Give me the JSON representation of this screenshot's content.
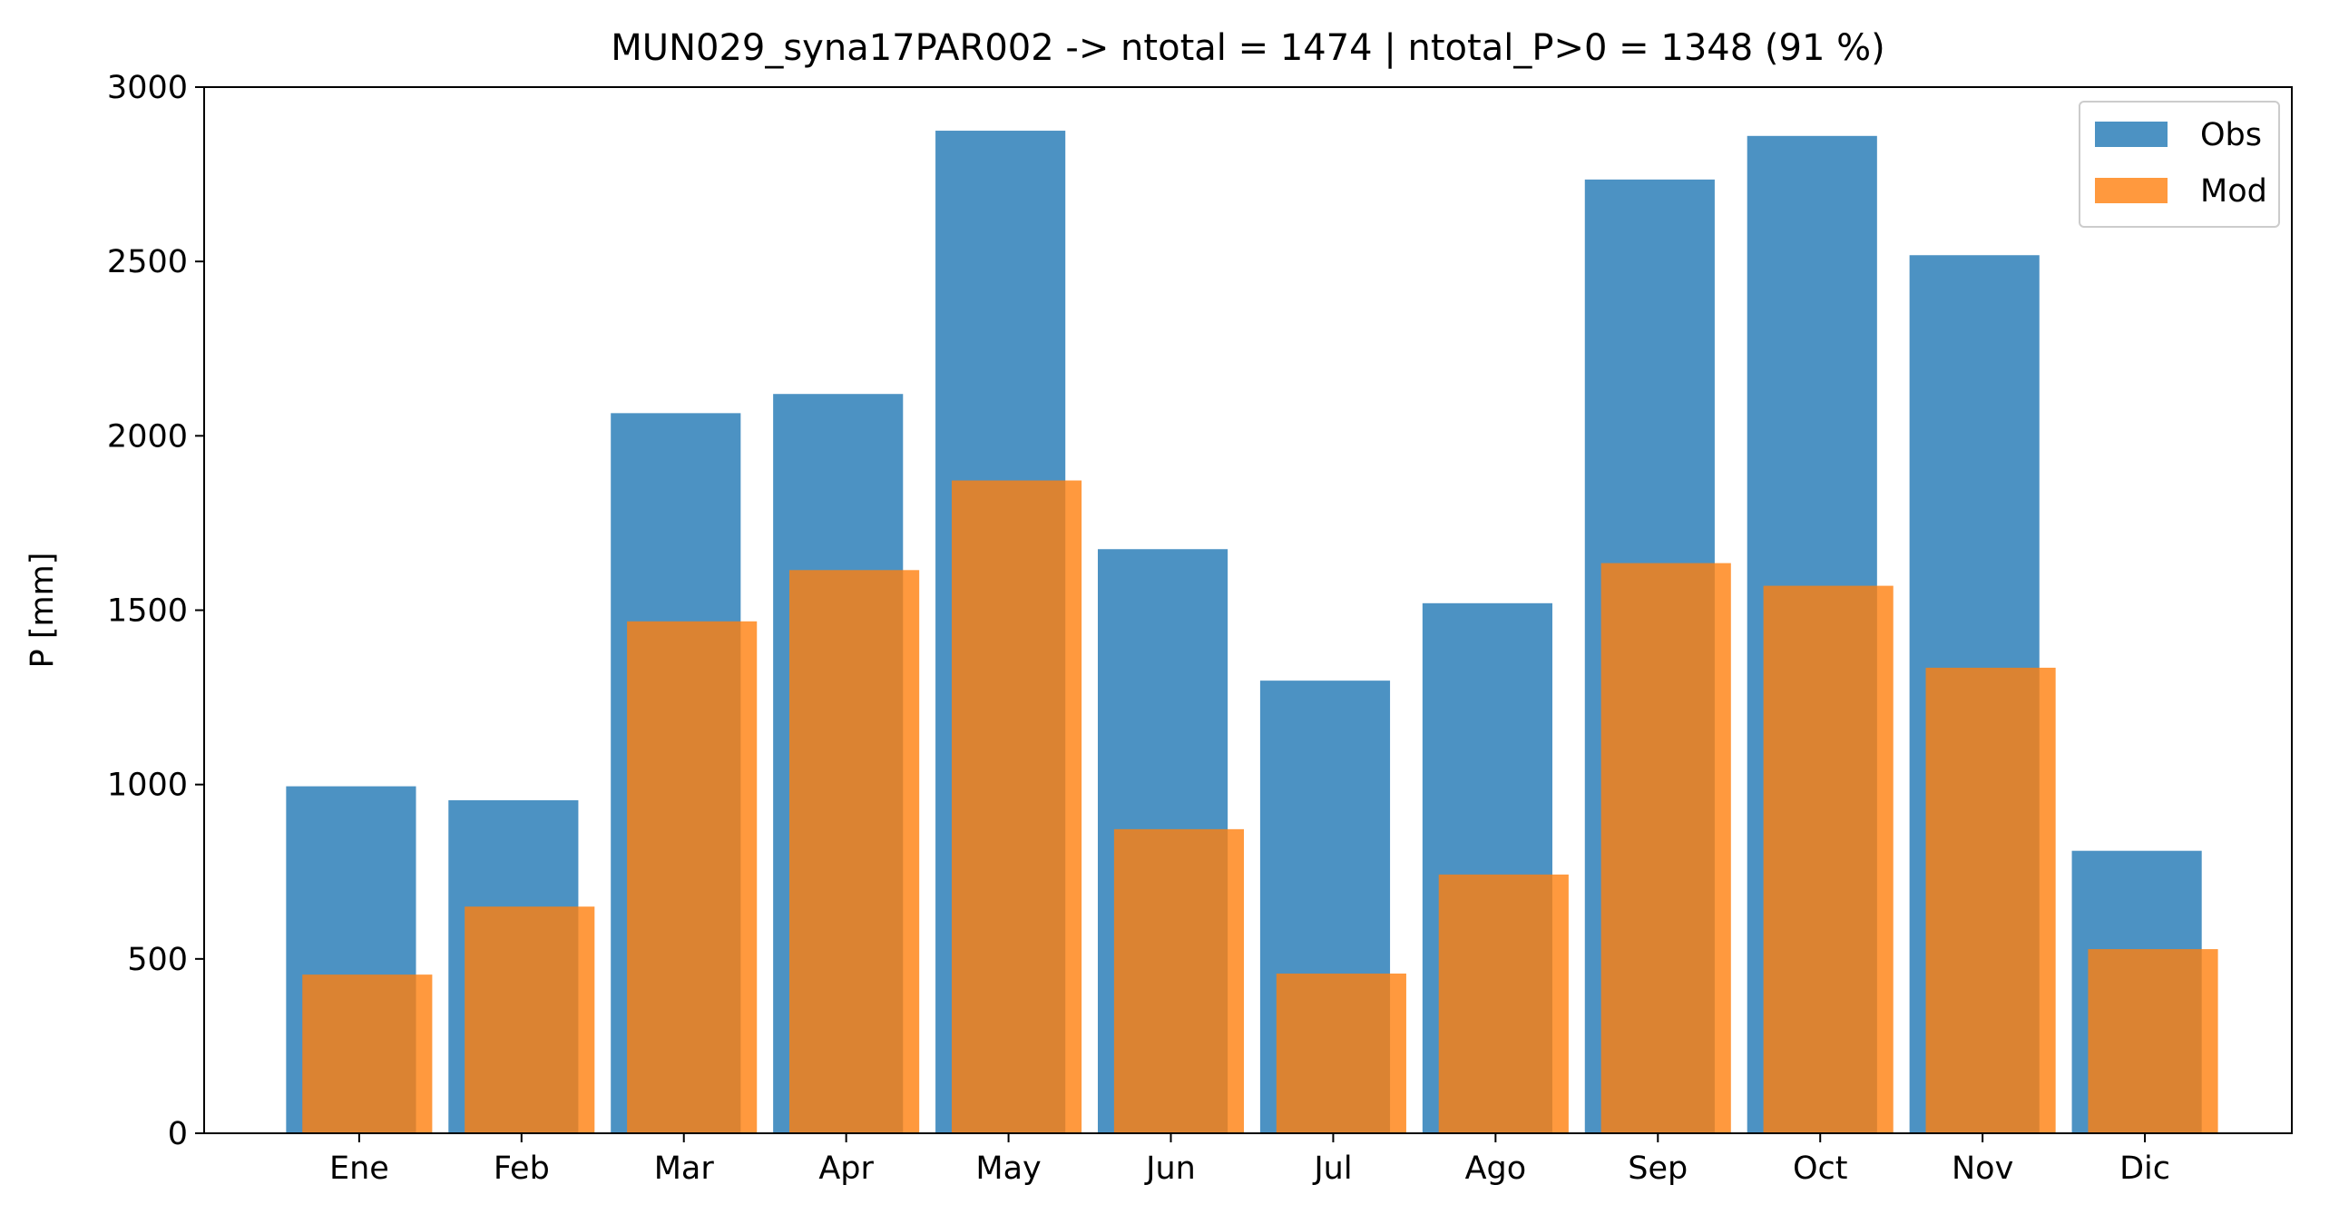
{
  "chart_data": {
    "type": "bar",
    "title": "MUN029_syna17PAR002 -> ntotal = 1474 | ntotal_P>0 = 1348 (91 %)",
    "xlabel": "",
    "ylabel": "P [mm]",
    "ylim": [
      0,
      3000
    ],
    "yticks": [
      0,
      500,
      1000,
      1500,
      2000,
      2500,
      3000
    ],
    "categories": [
      "Ene",
      "Feb",
      "Mar",
      "Apr",
      "May",
      "Jun",
      "Jul",
      "Ago",
      "Sep",
      "Oct",
      "Nov",
      "Dic"
    ],
    "series": [
      {
        "name": "Obs",
        "color": "#1f77b4",
        "values": [
          995,
          955,
          2065,
          2120,
          2875,
          1675,
          1298,
          1520,
          2735,
          2860,
          2518,
          810
        ]
      },
      {
        "name": "Mod",
        "color": "#ff7f0e",
        "values": [
          455,
          650,
          1468,
          1615,
          1872,
          872,
          458,
          742,
          1635,
          1570,
          1335,
          528
        ]
      }
    ],
    "legend_position": "top-right",
    "grid": false
  }
}
